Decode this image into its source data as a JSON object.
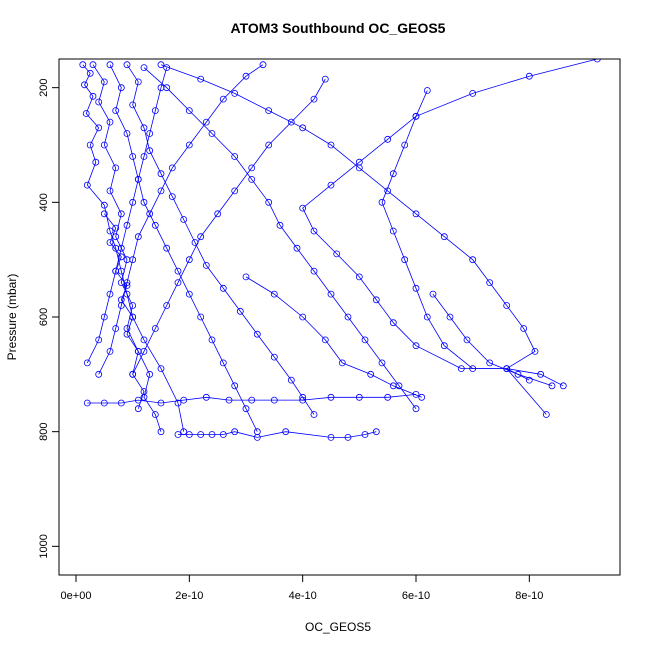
{
  "chart_data": {
    "type": "line",
    "title": "ATOM3 Southbound OC_GEOS5",
    "xlabel": "OC_GEOS5",
    "ylabel": "Pressure (mbar)",
    "xlim": [
      -3e-11,
      9.6e-10
    ],
    "ylim": [
      1050,
      150
    ],
    "y_reversed": true,
    "x_ticks": [
      0,
      2e-10,
      4e-10,
      6e-10,
      8e-10
    ],
    "x_tick_labels": [
      "0e+00",
      "2e-10",
      "4e-10",
      "6e-10",
      "8e-10"
    ],
    "y_ticks": [
      200,
      400,
      600,
      800,
      1000
    ],
    "y_tick_labels": [
      "200",
      "400",
      "600",
      "800",
      "1000"
    ],
    "grid": false,
    "line_color": "#0000ff",
    "series": [
      {
        "values": [
          [
            1.2e-11,
            160
          ],
          [
            2.5e-11,
            175
          ],
          [
            1.5e-11,
            195
          ],
          [
            3e-11,
            215
          ],
          [
            1.8e-11,
            245
          ],
          [
            4e-11,
            270
          ],
          [
            2.5e-11,
            300
          ],
          [
            3.5e-11,
            330
          ],
          [
            2e-11,
            370
          ],
          [
            5e-11,
            405
          ],
          [
            6e-11,
            450
          ],
          [
            7e-11,
            480
          ],
          [
            8e-11,
            520
          ],
          [
            9e-11,
            560
          ],
          [
            1e-10,
            600
          ],
          [
            1.2e-10,
            640
          ],
          [
            1.5e-10,
            690
          ],
          [
            1.8e-10,
            750
          ],
          [
            1.9e-10,
            800
          ]
        ]
      },
      {
        "values": [
          [
            3e-11,
            160
          ],
          [
            5e-11,
            190
          ],
          [
            4e-11,
            225
          ],
          [
            6e-11,
            260
          ],
          [
            5e-11,
            300
          ],
          [
            7e-11,
            340
          ],
          [
            6e-11,
            380
          ],
          [
            8e-11,
            420
          ],
          [
            7e-11,
            460
          ],
          [
            9e-11,
            500
          ],
          [
            8e-11,
            540
          ],
          [
            1e-10,
            580
          ],
          [
            9e-11,
            620
          ],
          [
            1.1e-10,
            660
          ],
          [
            1.3e-10,
            700
          ],
          [
            1.2e-10,
            740
          ],
          [
            1.4e-10,
            770
          ],
          [
            1.5e-10,
            800
          ]
        ]
      },
      {
        "values": [
          [
            6e-11,
            160
          ],
          [
            8e-11,
            200
          ],
          [
            7e-11,
            240
          ],
          [
            9e-11,
            280
          ],
          [
            1e-10,
            320
          ],
          [
            1.1e-10,
            360
          ],
          [
            1.2e-10,
            400
          ],
          [
            1.4e-10,
            440
          ],
          [
            1.6e-10,
            480
          ],
          [
            1.8e-10,
            520
          ],
          [
            2e-10,
            560
          ],
          [
            2.2e-10,
            600
          ],
          [
            2.4e-10,
            640
          ],
          [
            2.6e-10,
            680
          ],
          [
            2.8e-10,
            720
          ],
          [
            3e-10,
            760
          ],
          [
            3.2e-10,
            800
          ]
        ]
      },
      {
        "values": [
          [
            9e-11,
            160
          ],
          [
            1.1e-10,
            190
          ],
          [
            1e-10,
            230
          ],
          [
            1.2e-10,
            270
          ],
          [
            1.3e-10,
            310
          ],
          [
            1.5e-10,
            350
          ],
          [
            1.7e-10,
            390
          ],
          [
            1.9e-10,
            430
          ],
          [
            2.1e-10,
            470
          ],
          [
            2.3e-10,
            510
          ],
          [
            2.6e-10,
            550
          ],
          [
            2.9e-10,
            590
          ],
          [
            3.2e-10,
            630
          ],
          [
            3.5e-10,
            670
          ],
          [
            3.8e-10,
            710
          ],
          [
            4e-10,
            740
          ],
          [
            4.2e-10,
            770
          ]
        ]
      },
      {
        "values": [
          [
            1.2e-10,
            165
          ],
          [
            1.6e-10,
            200
          ],
          [
            2e-10,
            240
          ],
          [
            2.4e-10,
            280
          ],
          [
            2.8e-10,
            320
          ],
          [
            3.1e-10,
            360
          ],
          [
            3.4e-10,
            400
          ],
          [
            3.6e-10,
            440
          ],
          [
            3.9e-10,
            480
          ],
          [
            4.2e-10,
            520
          ],
          [
            4.5e-10,
            560
          ],
          [
            4.8e-10,
            600
          ],
          [
            5.1e-10,
            640
          ],
          [
            5.4e-10,
            680
          ],
          [
            5.7e-10,
            720
          ],
          [
            6e-10,
            760
          ]
        ]
      },
      {
        "values": [
          [
            1.5e-10,
            160
          ],
          [
            2.2e-10,
            185
          ],
          [
            2.8e-10,
            210
          ],
          [
            3.4e-10,
            240
          ],
          [
            4e-10,
            270
          ],
          [
            4.5e-10,
            300
          ],
          [
            5e-10,
            340
          ],
          [
            5.5e-10,
            380
          ],
          [
            6e-10,
            420
          ],
          [
            6.5e-10,
            460
          ],
          [
            7e-10,
            500
          ],
          [
            7.3e-10,
            540
          ],
          [
            7.6e-10,
            580
          ],
          [
            7.9e-10,
            620
          ],
          [
            8.1e-10,
            660
          ],
          [
            7.6e-10,
            690
          ],
          [
            8.3e-10,
            770
          ]
        ]
      },
      {
        "values": [
          [
            6.2e-10,
            205
          ],
          [
            6e-10,
            250
          ],
          [
            5.8e-10,
            300
          ],
          [
            5.6e-10,
            350
          ],
          [
            5.4e-10,
            400
          ],
          [
            5.6e-10,
            450
          ],
          [
            5.8e-10,
            500
          ],
          [
            6e-10,
            550
          ],
          [
            6.2e-10,
            600
          ],
          [
            6.5e-10,
            650
          ],
          [
            7e-10,
            690
          ],
          [
            7.6e-10,
            690
          ],
          [
            8.2e-10,
            700
          ],
          [
            8.6e-10,
            720
          ]
        ]
      },
      {
        "values": [
          [
            9.2e-10,
            150
          ],
          [
            8e-10,
            180
          ],
          [
            7e-10,
            210
          ],
          [
            6e-10,
            250
          ],
          [
            5.5e-10,
            290
          ],
          [
            5e-10,
            330
          ],
          [
            4.5e-10,
            370
          ],
          [
            4e-10,
            410
          ],
          [
            4.2e-10,
            450
          ],
          [
            4.6e-10,
            490
          ],
          [
            5e-10,
            530
          ],
          [
            5.3e-10,
            570
          ],
          [
            5.6e-10,
            610
          ],
          [
            6e-10,
            650
          ],
          [
            6.8e-10,
            690
          ],
          [
            7.6e-10,
            690
          ],
          [
            8e-10,
            710
          ]
        ]
      },
      {
        "values": [
          [
            2e-11,
            750
          ],
          [
            5e-11,
            750
          ],
          [
            8e-11,
            750
          ],
          [
            1.1e-10,
            745
          ],
          [
            1.5e-10,
            750
          ],
          [
            1.9e-10,
            745
          ],
          [
            2.3e-10,
            740
          ],
          [
            2.7e-10,
            745
          ],
          [
            3.1e-10,
            745
          ],
          [
            3.5e-10,
            745
          ],
          [
            4e-10,
            745
          ],
          [
            4.5e-10,
            740
          ],
          [
            5e-10,
            740
          ],
          [
            5.5e-10,
            740
          ],
          [
            6e-10,
            735
          ]
        ]
      },
      {
        "values": [
          [
            1.8e-10,
            805
          ],
          [
            2e-10,
            805
          ],
          [
            2.2e-10,
            805
          ],
          [
            2.4e-10,
            805
          ],
          [
            2.6e-10,
            805
          ],
          [
            2.8e-10,
            800
          ],
          [
            3.2e-10,
            810
          ],
          [
            3.7e-10,
            800
          ],
          [
            4.5e-10,
            810
          ],
          [
            4.8e-10,
            810
          ],
          [
            5.1e-10,
            805
          ],
          [
            5.3e-10,
            800
          ]
        ]
      },
      {
        "values": [
          [
            2e-11,
            680
          ],
          [
            4e-11,
            640
          ],
          [
            5e-11,
            600
          ],
          [
            6e-11,
            560
          ],
          [
            7e-11,
            520
          ],
          [
            8e-11,
            480
          ],
          [
            9e-11,
            440
          ],
          [
            1e-10,
            400
          ],
          [
            1.1e-10,
            360
          ],
          [
            1.2e-10,
            320
          ],
          [
            1.3e-10,
            280
          ],
          [
            1.4e-10,
            240
          ],
          [
            1.5e-10,
            200
          ],
          [
            1.6e-10,
            165
          ]
        ]
      },
      {
        "values": [
          [
            4e-11,
            700
          ],
          [
            6e-11,
            660
          ],
          [
            7e-11,
            620
          ],
          [
            8e-11,
            580
          ],
          [
            9e-11,
            540
          ],
          [
            1e-10,
            500
          ],
          [
            1.1e-10,
            460
          ],
          [
            1.3e-10,
            420
          ],
          [
            1.5e-10,
            380
          ],
          [
            1.7e-10,
            340
          ],
          [
            2e-10,
            300
          ],
          [
            2.3e-10,
            260
          ],
          [
            2.6e-10,
            220
          ],
          [
            3e-10,
            180
          ],
          [
            3.3e-10,
            160
          ]
        ]
      },
      {
        "values": [
          [
            1e-10,
            700
          ],
          [
            1.2e-10,
            660
          ],
          [
            1.4e-10,
            620
          ],
          [
            1.6e-10,
            580
          ],
          [
            1.8e-10,
            540
          ],
          [
            2e-10,
            500
          ],
          [
            2.2e-10,
            460
          ],
          [
            2.5e-10,
            420
          ],
          [
            2.8e-10,
            380
          ],
          [
            3.1e-10,
            340
          ],
          [
            3.4e-10,
            300
          ],
          [
            3.8e-10,
            260
          ],
          [
            4.2e-10,
            220
          ],
          [
            4.4e-10,
            185
          ]
        ]
      },
      {
        "values": [
          [
            5e-11,
            420
          ],
          [
            7e-11,
            445
          ],
          [
            6e-11,
            470
          ],
          [
            8e-11,
            495
          ],
          [
            7e-11,
            520
          ],
          [
            9e-11,
            545
          ],
          [
            8e-11,
            570
          ],
          [
            1e-10,
            600
          ],
          [
            9e-11,
            630
          ],
          [
            1.1e-10,
            660
          ],
          [
            1e-10,
            700
          ],
          [
            1.2e-10,
            730
          ],
          [
            1.1e-10,
            760
          ]
        ]
      },
      {
        "values": [
          [
            3e-10,
            530
          ],
          [
            3.5e-10,
            560
          ],
          [
            4e-10,
            600
          ],
          [
            4.4e-10,
            640
          ],
          [
            4.7e-10,
            680
          ],
          [
            5.2e-10,
            700
          ],
          [
            5.6e-10,
            720
          ],
          [
            6.1e-10,
            740
          ]
        ]
      },
      {
        "values": [
          [
            6.3e-10,
            560
          ],
          [
            6.6e-10,
            600
          ],
          [
            6.9e-10,
            640
          ],
          [
            7.3e-10,
            680
          ],
          [
            7.8e-10,
            700
          ],
          [
            8.4e-10,
            720
          ]
        ]
      }
    ]
  }
}
